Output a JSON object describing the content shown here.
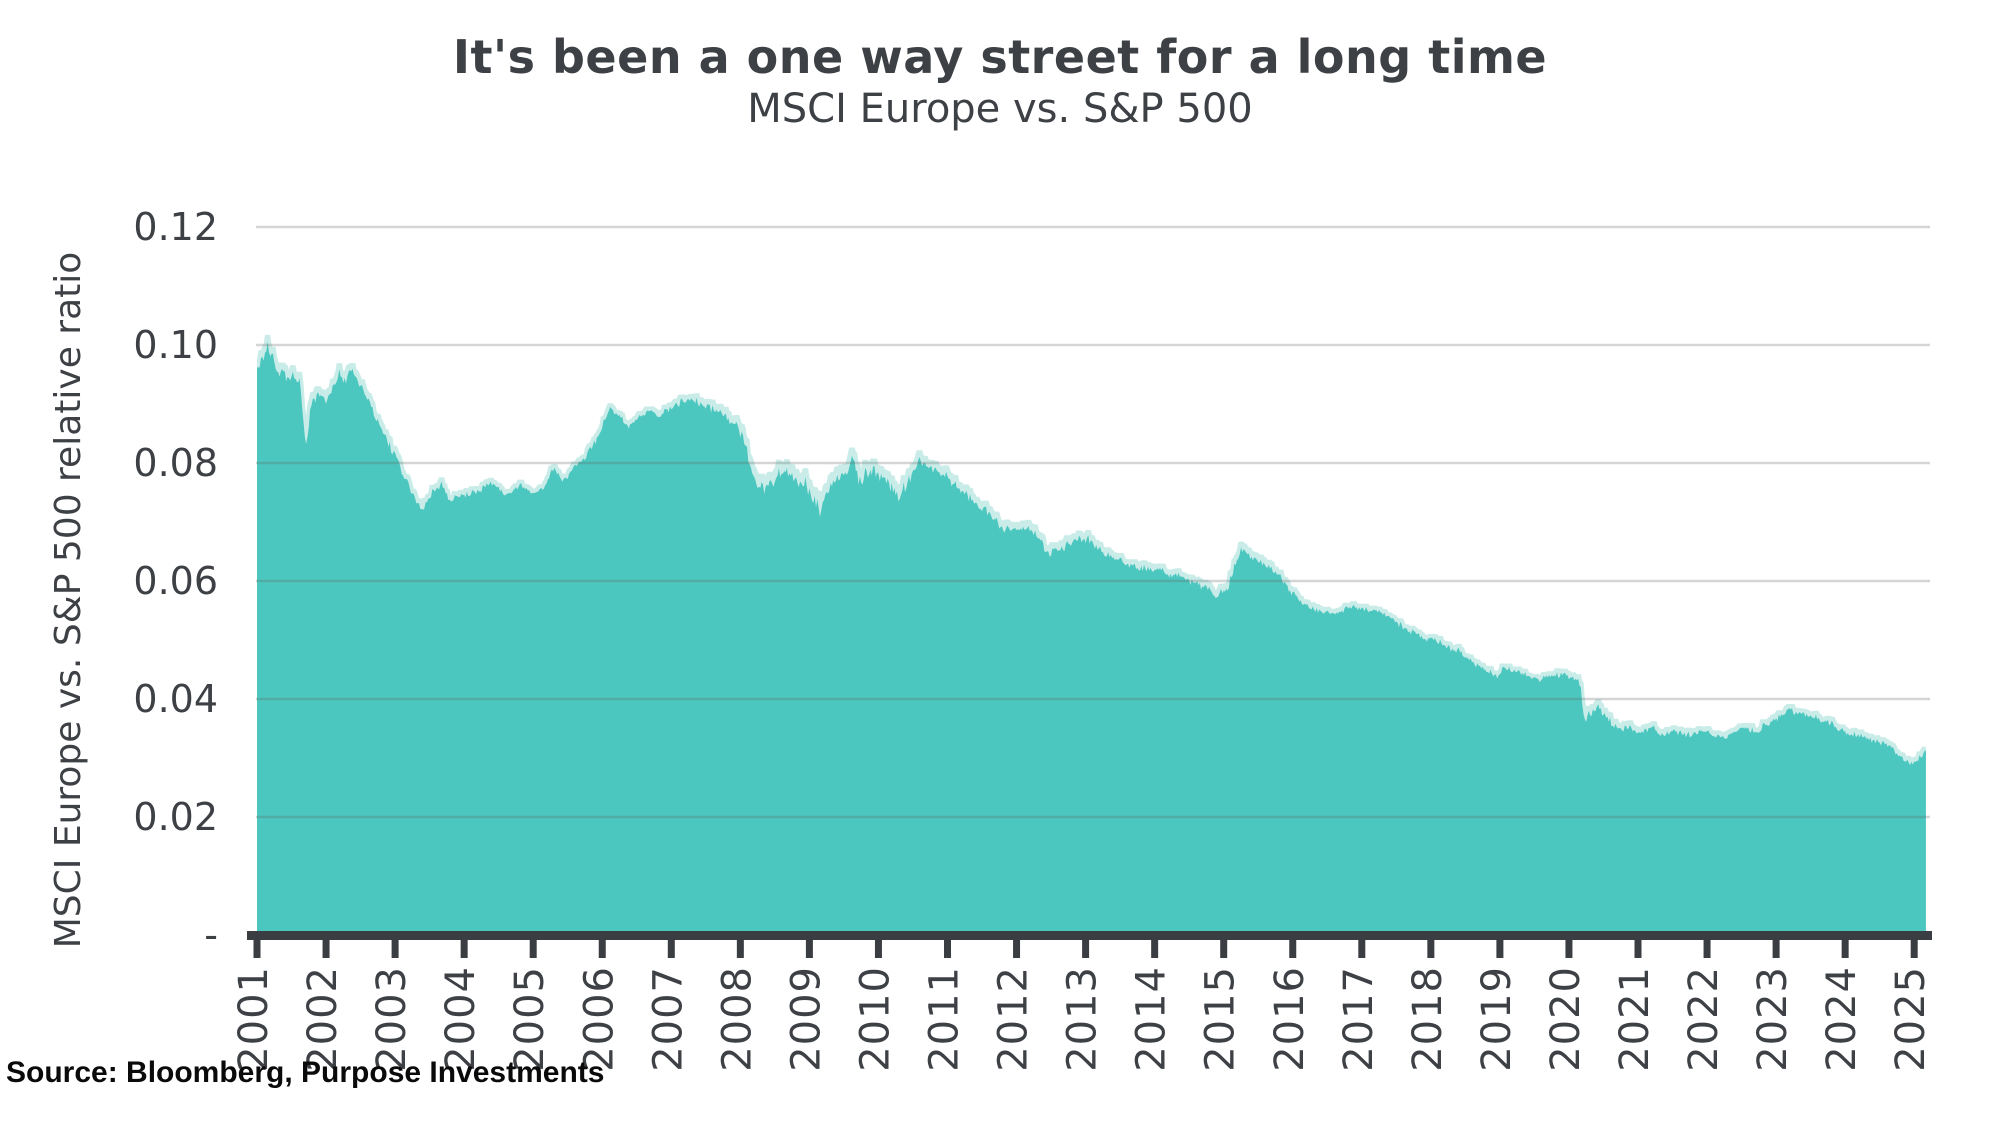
{
  "title": "It's been a one way street for a long time",
  "subtitle": "MSCI Europe vs. S&P 500",
  "source": "Source: Bloomberg, Purpose Investments",
  "colors": {
    "area_main": "#4CC7BF",
    "area_light": "#C9ECE9",
    "grid": "rgba(100,100,100,0.27)",
    "axis": "#3a3d42",
    "text_dark": "#3d4045"
  },
  "y_axis": {
    "title": "MSCI Europe vs. S&P 500 relative ratio",
    "tick_labels": [
      "0.12",
      "0.10",
      "0.08",
      "0.06",
      "0.04",
      "0.02",
      "-"
    ],
    "tick_values": [
      0.12,
      0.1,
      0.08,
      0.06,
      0.04,
      0.02,
      0
    ]
  },
  "x_axis": {
    "tick_labels": [
      "2001",
      "2002",
      "2003",
      "2004",
      "2005",
      "2006",
      "2007",
      "2008",
      "2009",
      "2010",
      "2011",
      "2012",
      "2013",
      "2014",
      "2015",
      "2016",
      "2017",
      "2018",
      "2019",
      "2020",
      "2021",
      "2022",
      "2023",
      "2024",
      "2025"
    ],
    "tick_values": [
      2001,
      2002,
      2003,
      2004,
      2005,
      2006,
      2007,
      2008,
      2009,
      2010,
      2011,
      2012,
      2013,
      2014,
      2015,
      2016,
      2017,
      2018,
      2019,
      2020,
      2021,
      2022,
      2023,
      2024,
      2025
    ]
  },
  "chart_data": {
    "type": "area",
    "title": "It's been a one way street for a long time",
    "subtitle": "MSCI Europe vs. S&P 500",
    "xlabel": "",
    "ylabel": "MSCI Europe vs. S&P 500 relative ratio",
    "ylim": [
      0,
      0.12
    ],
    "xlim": [
      2001,
      2025.17
    ],
    "grid": true,
    "legend": false,
    "samples_per_year": 52,
    "series": [
      {
        "name": "MSCI Europe vs. S&P 500 relative ratio",
        "anchor_points": [
          [
            2001.0,
            0.096
          ],
          [
            2001.08,
            0.0975
          ],
          [
            2001.15,
            0.1003
          ],
          [
            2001.25,
            0.0968
          ],
          [
            2001.35,
            0.0952
          ],
          [
            2001.5,
            0.0945
          ],
          [
            2001.62,
            0.0938
          ],
          [
            2001.7,
            0.0827
          ],
          [
            2001.8,
            0.0905
          ],
          [
            2001.9,
            0.0918
          ],
          [
            2002.0,
            0.0905
          ],
          [
            2002.1,
            0.0932
          ],
          [
            2002.2,
            0.0952
          ],
          [
            2002.28,
            0.094
          ],
          [
            2002.38,
            0.096
          ],
          [
            2002.5,
            0.093
          ],
          [
            2002.65,
            0.0895
          ],
          [
            2002.8,
            0.0855
          ],
          [
            2002.95,
            0.0822
          ],
          [
            2003.07,
            0.0795
          ],
          [
            2003.2,
            0.076
          ],
          [
            2003.4,
            0.0718
          ],
          [
            2003.55,
            0.0752
          ],
          [
            2003.67,
            0.0765
          ],
          [
            2003.8,
            0.0738
          ],
          [
            2004.0,
            0.0745
          ],
          [
            2004.2,
            0.0752
          ],
          [
            2004.4,
            0.0768
          ],
          [
            2004.6,
            0.0745
          ],
          [
            2004.8,
            0.0762
          ],
          [
            2005.0,
            0.0748
          ],
          [
            2005.15,
            0.076
          ],
          [
            2005.3,
            0.079
          ],
          [
            2005.42,
            0.0768
          ],
          [
            2005.6,
            0.0792
          ],
          [
            2005.75,
            0.081
          ],
          [
            2005.9,
            0.0835
          ],
          [
            2006.1,
            0.0893
          ],
          [
            2006.25,
            0.088
          ],
          [
            2006.38,
            0.0862
          ],
          [
            2006.55,
            0.088
          ],
          [
            2006.7,
            0.0888
          ],
          [
            2006.85,
            0.0882
          ],
          [
            2007.0,
            0.0895
          ],
          [
            2007.15,
            0.0902
          ],
          [
            2007.3,
            0.0908
          ],
          [
            2007.45,
            0.0898
          ],
          [
            2007.6,
            0.0893
          ],
          [
            2007.75,
            0.088
          ],
          [
            2007.9,
            0.0872
          ],
          [
            2008.05,
            0.0842
          ],
          [
            2008.2,
            0.0768
          ],
          [
            2008.35,
            0.076
          ],
          [
            2008.5,
            0.0772
          ],
          [
            2008.62,
            0.0788
          ],
          [
            2008.75,
            0.0775
          ],
          [
            2008.9,
            0.077
          ],
          [
            2009.05,
            0.0742
          ],
          [
            2009.16,
            0.0722
          ],
          [
            2009.3,
            0.076
          ],
          [
            2009.45,
            0.0775
          ],
          [
            2009.55,
            0.0782
          ],
          [
            2009.63,
            0.0818
          ],
          [
            2009.72,
            0.0768
          ],
          [
            2009.85,
            0.0788
          ],
          [
            2010.0,
            0.0778
          ],
          [
            2010.15,
            0.0765
          ],
          [
            2010.3,
            0.0742
          ],
          [
            2010.45,
            0.0772
          ],
          [
            2010.6,
            0.081
          ],
          [
            2010.72,
            0.0795
          ],
          [
            2010.85,
            0.0788
          ],
          [
            2011.0,
            0.0778
          ],
          [
            2011.15,
            0.076
          ],
          [
            2011.3,
            0.074
          ],
          [
            2011.45,
            0.073
          ],
          [
            2011.6,
            0.0718
          ],
          [
            2011.75,
            0.0695
          ],
          [
            2011.9,
            0.0688
          ],
          [
            2012.05,
            0.0683
          ],
          [
            2012.2,
            0.069
          ],
          [
            2012.35,
            0.0665
          ],
          [
            2012.48,
            0.0645
          ],
          [
            2012.6,
            0.0652
          ],
          [
            2012.75,
            0.066
          ],
          [
            2012.9,
            0.0675
          ],
          [
            2013.05,
            0.0668
          ],
          [
            2013.2,
            0.0655
          ],
          [
            2013.4,
            0.064
          ],
          [
            2013.6,
            0.0628
          ],
          [
            2013.8,
            0.0622
          ],
          [
            2014.0,
            0.062
          ],
          [
            2014.2,
            0.0612
          ],
          [
            2014.4,
            0.0605
          ],
          [
            2014.6,
            0.0595
          ],
          [
            2014.75,
            0.0588
          ],
          [
            2014.9,
            0.0578
          ],
          [
            2015.05,
            0.0585
          ],
          [
            2015.15,
            0.062
          ],
          [
            2015.25,
            0.0658
          ],
          [
            2015.35,
            0.0645
          ],
          [
            2015.5,
            0.0632
          ],
          [
            2015.65,
            0.0625
          ],
          [
            2015.8,
            0.061
          ],
          [
            2015.95,
            0.0585
          ],
          [
            2016.1,
            0.0568
          ],
          [
            2016.25,
            0.0555
          ],
          [
            2016.4,
            0.0548
          ],
          [
            2016.6,
            0.0545
          ],
          [
            2016.75,
            0.0552
          ],
          [
            2016.9,
            0.0558
          ],
          [
            2017.05,
            0.0552
          ],
          [
            2017.2,
            0.0548
          ],
          [
            2017.35,
            0.0544
          ],
          [
            2017.5,
            0.053
          ],
          [
            2017.65,
            0.0518
          ],
          [
            2017.8,
            0.051
          ],
          [
            2017.95,
            0.0502
          ],
          [
            2018.1,
            0.0498
          ],
          [
            2018.25,
            0.0488
          ],
          [
            2018.4,
            0.0482
          ],
          [
            2018.55,
            0.0468
          ],
          [
            2018.7,
            0.0455
          ],
          [
            2018.85,
            0.0445
          ],
          [
            2018.97,
            0.0438
          ],
          [
            2019.05,
            0.0455
          ],
          [
            2019.2,
            0.0448
          ],
          [
            2019.35,
            0.0442
          ],
          [
            2019.55,
            0.0432
          ],
          [
            2019.75,
            0.044
          ],
          [
            2019.95,
            0.0442
          ],
          [
            2020.1,
            0.0432
          ],
          [
            2020.17,
            0.0425
          ],
          [
            2020.22,
            0.0362
          ],
          [
            2020.3,
            0.0375
          ],
          [
            2020.42,
            0.0386
          ],
          [
            2020.55,
            0.0366
          ],
          [
            2020.72,
            0.035
          ],
          [
            2020.9,
            0.0352
          ],
          [
            2021.0,
            0.0343
          ],
          [
            2021.2,
            0.0352
          ],
          [
            2021.35,
            0.0338
          ],
          [
            2021.5,
            0.0347
          ],
          [
            2021.65,
            0.034
          ],
          [
            2021.8,
            0.0342
          ],
          [
            2021.95,
            0.0347
          ],
          [
            2022.1,
            0.0338
          ],
          [
            2022.25,
            0.0333
          ],
          [
            2022.4,
            0.0345
          ],
          [
            2022.55,
            0.0352
          ],
          [
            2022.7,
            0.0345
          ],
          [
            2022.85,
            0.0355
          ],
          [
            2023.0,
            0.0365
          ],
          [
            2023.1,
            0.0372
          ],
          [
            2023.18,
            0.0385
          ],
          [
            2023.3,
            0.0376
          ],
          [
            2023.45,
            0.0372
          ],
          [
            2023.6,
            0.0368
          ],
          [
            2023.75,
            0.0362
          ],
          [
            2023.9,
            0.035
          ],
          [
            2024.05,
            0.0342
          ],
          [
            2024.2,
            0.0338
          ],
          [
            2024.35,
            0.0332
          ],
          [
            2024.5,
            0.0326
          ],
          [
            2024.65,
            0.032
          ],
          [
            2024.8,
            0.0302
          ],
          [
            2024.95,
            0.0288
          ],
          [
            2025.05,
            0.0295
          ],
          [
            2025.17,
            0.0312
          ]
        ]
      }
    ],
    "noise_amplitude_anchors": [
      [
        2001.0,
        0.0009
      ],
      [
        2002.5,
        0.0007
      ],
      [
        2004.0,
        0.00045
      ],
      [
        2006.0,
        0.0004
      ],
      [
        2007.3,
        0.0005
      ],
      [
        2008.3,
        0.0011
      ],
      [
        2009.5,
        0.0011
      ],
      [
        2010.5,
        0.00085
      ],
      [
        2011.5,
        0.00075
      ],
      [
        2012.5,
        0.00075
      ],
      [
        2013.5,
        0.00055
      ],
      [
        2014.5,
        0.0005
      ],
      [
        2015.3,
        0.0007
      ],
      [
        2016.5,
        0.00045
      ],
      [
        2017.5,
        0.0004
      ],
      [
        2018.5,
        0.00045
      ],
      [
        2019.5,
        0.00035
      ],
      [
        2020.4,
        0.00065
      ],
      [
        2021.5,
        0.00045
      ],
      [
        2022.5,
        0.0005
      ],
      [
        2023.5,
        0.00045
      ],
      [
        2024.5,
        0.00045
      ],
      [
        2025.2,
        0.00045
      ]
    ]
  }
}
